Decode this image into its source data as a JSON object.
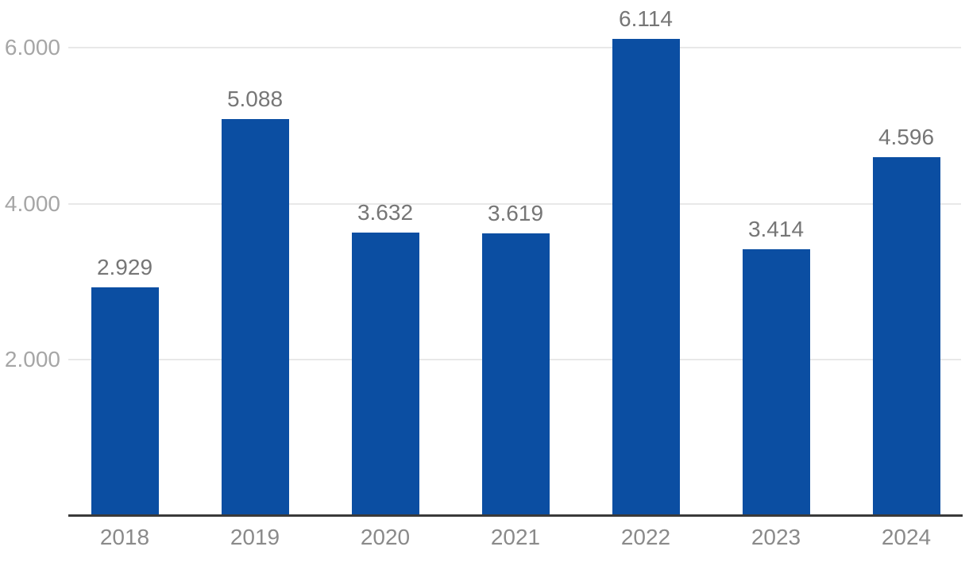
{
  "chart_data": {
    "type": "bar",
    "title": "",
    "xlabel": "",
    "ylabel": "",
    "categories": [
      "2018",
      "2019",
      "2020",
      "2021",
      "2022",
      "2023",
      "2024"
    ],
    "values": [
      2929,
      5088,
      3632,
      3619,
      6114,
      3414,
      4596
    ],
    "value_labels": [
      "2.929",
      "5.088",
      "3.632",
      "3.619",
      "6.114",
      "3.414",
      "4.596"
    ],
    "yticks": [
      {
        "value": 2000,
        "label": "2.000"
      },
      {
        "value": 4000,
        "label": "4.000"
      },
      {
        "value": 6000,
        "label": "6.000"
      }
    ],
    "ylim": [
      0,
      6600
    ],
    "grid": "horizontal",
    "legend": "none",
    "colors": {
      "bar": "#0b4ea2",
      "value_label": "#767676",
      "x_tick_label": "#8a8a8a",
      "y_tick_label": "#a6a6a6",
      "gridline": "#e8e8e8",
      "axis_line": "#3a3a3a",
      "background": "#ffffff"
    }
  }
}
